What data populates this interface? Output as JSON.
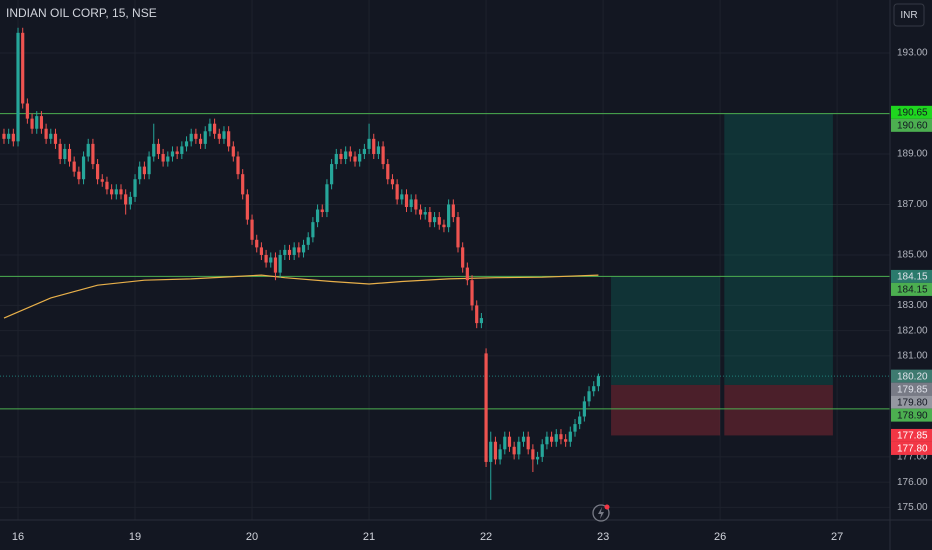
{
  "chart_data": {
    "type": "candlestick",
    "title": "INDIAN OIL CORP, 15, NSE",
    "currency": "INR",
    "up_color": "#26a69a",
    "down_color": "#ef5350",
    "xlim": [
      -0.85,
      189.3
    ],
    "ylim": [
      174.5,
      195.1
    ],
    "grid": true,
    "xticks": [
      {
        "value": 3,
        "label": "16"
      },
      {
        "value": 28,
        "label": "19"
      },
      {
        "value": 53,
        "label": "20"
      },
      {
        "value": 78,
        "label": "21"
      },
      {
        "value": 103,
        "label": "22"
      },
      {
        "value": 128,
        "label": "23"
      },
      {
        "value": 153,
        "label": "26"
      },
      {
        "value": 178,
        "label": "27"
      }
    ],
    "yticks": [
      {
        "value": 193,
        "label": "193.00"
      },
      {
        "value": 189,
        "label": "189.00"
      },
      {
        "value": 187,
        "label": "187.00"
      },
      {
        "value": 185,
        "label": "185.00"
      },
      {
        "value": 183,
        "label": "183.00"
      },
      {
        "value": 182,
        "label": "182.00"
      },
      {
        "value": 181,
        "label": "181.00"
      },
      {
        "value": 177,
        "label": "177.00"
      },
      {
        "value": 176,
        "label": "176.00"
      },
      {
        "value": 175,
        "label": "175.00"
      }
    ],
    "candles": [
      [
        189.8,
        190.0,
        189.4,
        189.6
      ],
      [
        189.6,
        190.0,
        189.4,
        189.8
      ],
      [
        189.8,
        190.0,
        189.3,
        189.5
      ],
      [
        189.5,
        194.0,
        189.3,
        193.8
      ],
      [
        193.8,
        194.0,
        190.8,
        191.0
      ],
      [
        191.0,
        191.2,
        190.2,
        190.4
      ],
      [
        190.4,
        190.6,
        189.8,
        190.0
      ],
      [
        190.0,
        190.7,
        189.8,
        190.5
      ],
      [
        190.5,
        190.7,
        189.8,
        190.0
      ],
      [
        190.0,
        190.2,
        189.4,
        189.6
      ],
      [
        189.6,
        190.0,
        189.4,
        189.8
      ],
      [
        189.8,
        190.0,
        189.2,
        189.4
      ],
      [
        189.4,
        189.6,
        188.6,
        188.8
      ],
      [
        188.8,
        189.4,
        188.6,
        189.2
      ],
      [
        189.2,
        189.4,
        188.5,
        188.7
      ],
      [
        188.7,
        188.9,
        188.1,
        188.3
      ],
      [
        188.3,
        188.5,
        187.8,
        188.0
      ],
      [
        188.0,
        189.1,
        187.8,
        188.9
      ],
      [
        188.9,
        189.6,
        188.7,
        189.4
      ],
      [
        189.4,
        189.6,
        188.4,
        188.6
      ],
      [
        188.6,
        188.8,
        187.8,
        188.0
      ],
      [
        188.0,
        188.2,
        187.7,
        187.9
      ],
      [
        187.9,
        188.1,
        187.4,
        187.6
      ],
      [
        187.6,
        187.8,
        187.2,
        187.4
      ],
      [
        187.4,
        187.8,
        187.2,
        187.6
      ],
      [
        187.6,
        187.8,
        187.2,
        187.4
      ],
      [
        187.4,
        187.6,
        186.6,
        187.0
      ],
      [
        187.0,
        187.5,
        186.8,
        187.3
      ],
      [
        187.3,
        188.2,
        187.1,
        188.0
      ],
      [
        188.0,
        188.7,
        187.8,
        188.5
      ],
      [
        188.5,
        188.7,
        188.0,
        188.2
      ],
      [
        188.2,
        189.1,
        188.0,
        188.9
      ],
      [
        188.9,
        190.2,
        188.7,
        189.4
      ],
      [
        189.4,
        189.6,
        188.8,
        189.0
      ],
      [
        189.0,
        189.2,
        188.5,
        188.7
      ],
      [
        188.7,
        189.1,
        188.5,
        188.9
      ],
      [
        188.9,
        189.3,
        188.7,
        189.1
      ],
      [
        189.1,
        189.3,
        188.8,
        189.0
      ],
      [
        189.0,
        189.5,
        188.8,
        189.3
      ],
      [
        189.3,
        189.7,
        189.1,
        189.5
      ],
      [
        189.5,
        190.0,
        189.3,
        189.8
      ],
      [
        189.8,
        190.0,
        189.4,
        189.6
      ],
      [
        189.6,
        189.8,
        189.2,
        189.4
      ],
      [
        189.4,
        190.1,
        189.2,
        189.9
      ],
      [
        189.9,
        190.4,
        189.7,
        190.2
      ],
      [
        190.2,
        190.4,
        189.6,
        189.8
      ],
      [
        189.8,
        190.0,
        189.4,
        189.6
      ],
      [
        189.6,
        190.1,
        189.4,
        189.9
      ],
      [
        189.9,
        190.1,
        189.1,
        189.3
      ],
      [
        189.3,
        189.5,
        188.7,
        188.9
      ],
      [
        188.9,
        189.1,
        188.0,
        188.2
      ],
      [
        188.2,
        188.4,
        187.2,
        187.4
      ],
      [
        187.4,
        187.6,
        186.2,
        186.4
      ],
      [
        186.4,
        186.6,
        185.4,
        185.6
      ],
      [
        185.6,
        185.8,
        185.1,
        185.3
      ],
      [
        185.3,
        185.5,
        184.8,
        185.0
      ],
      [
        185.0,
        185.2,
        184.5,
        184.7
      ],
      [
        184.7,
        185.1,
        184.5,
        184.9
      ],
      [
        184.9,
        185.1,
        184.0,
        184.3
      ],
      [
        184.3,
        185.2,
        184.1,
        185.0
      ],
      [
        185.0,
        185.4,
        184.8,
        185.2
      ],
      [
        185.2,
        185.4,
        184.8,
        185.0
      ],
      [
        185.0,
        185.5,
        184.8,
        185.3
      ],
      [
        185.3,
        185.5,
        184.9,
        185.1
      ],
      [
        185.1,
        185.6,
        184.9,
        185.4
      ],
      [
        185.4,
        185.9,
        185.2,
        185.7
      ],
      [
        185.7,
        186.5,
        185.5,
        186.3
      ],
      [
        186.3,
        187.0,
        186.1,
        186.8
      ],
      [
        186.8,
        187.0,
        186.5,
        186.7
      ],
      [
        186.7,
        188.0,
        186.5,
        187.8
      ],
      [
        187.8,
        188.8,
        187.6,
        188.6
      ],
      [
        188.6,
        189.2,
        188.4,
        189.0
      ],
      [
        189.0,
        189.2,
        188.6,
        188.8
      ],
      [
        188.8,
        189.3,
        188.6,
        189.1
      ],
      [
        189.1,
        189.3,
        188.7,
        188.9
      ],
      [
        188.9,
        189.1,
        188.5,
        188.7
      ],
      [
        188.7,
        189.2,
        188.5,
        189.0
      ],
      [
        189.0,
        189.4,
        188.8,
        189.2
      ],
      [
        189.2,
        190.2,
        189.0,
        189.6
      ],
      [
        189.6,
        189.8,
        188.8,
        189.0
      ],
      [
        189.0,
        189.5,
        188.8,
        189.3
      ],
      [
        189.3,
        189.5,
        188.4,
        188.6
      ],
      [
        188.6,
        188.8,
        187.8,
        188.0
      ],
      [
        188.0,
        188.2,
        187.6,
        187.8
      ],
      [
        187.8,
        188.0,
        187.0,
        187.2
      ],
      [
        187.2,
        187.6,
        187.0,
        187.4
      ],
      [
        187.4,
        187.6,
        186.7,
        186.9
      ],
      [
        186.9,
        187.4,
        186.7,
        187.2
      ],
      [
        187.2,
        187.4,
        186.6,
        186.8
      ],
      [
        186.8,
        187.0,
        186.4,
        186.6
      ],
      [
        186.6,
        186.9,
        186.4,
        186.7
      ],
      [
        186.7,
        186.9,
        186.1,
        186.3
      ],
      [
        186.3,
        186.7,
        186.1,
        186.5
      ],
      [
        186.5,
        186.7,
        186.0,
        186.2
      ],
      [
        186.2,
        186.4,
        185.9,
        186.1
      ],
      [
        186.1,
        187.2,
        185.9,
        187.0
      ],
      [
        187.0,
        187.2,
        186.3,
        186.5
      ],
      [
        186.5,
        186.7,
        185.1,
        185.3
      ],
      [
        185.3,
        185.5,
        184.3,
        184.5
      ],
      [
        184.5,
        184.7,
        183.8,
        184.0
      ],
      [
        184.0,
        184.2,
        182.8,
        183.0
      ],
      [
        183.0,
        183.2,
        182.1,
        182.3
      ],
      [
        182.3,
        182.7,
        182.1,
        182.5
      ],
      [
        181.1,
        181.3,
        176.6,
        176.8
      ],
      [
        176.8,
        178.0,
        175.3,
        177.6
      ],
      [
        177.6,
        177.8,
        176.7,
        176.9
      ],
      [
        176.9,
        177.5,
        176.7,
        177.3
      ],
      [
        177.3,
        178.0,
        177.1,
        177.8
      ],
      [
        177.8,
        178.0,
        177.2,
        177.4
      ],
      [
        177.4,
        177.6,
        176.9,
        177.1
      ],
      [
        177.1,
        177.8,
        176.9,
        177.6
      ],
      [
        177.6,
        178.0,
        177.4,
        177.8
      ],
      [
        177.8,
        178.0,
        177.1,
        177.3
      ],
      [
        177.3,
        177.5,
        176.4,
        176.9
      ],
      [
        176.9,
        177.2,
        176.7,
        177.0
      ],
      [
        177.0,
        177.7,
        176.8,
        177.5
      ],
      [
        177.5,
        178.0,
        177.3,
        177.8
      ],
      [
        177.8,
        178.0,
        177.4,
        177.6
      ],
      [
        177.6,
        178.1,
        177.4,
        177.9
      ],
      [
        177.9,
        178.1,
        177.5,
        177.7
      ],
      [
        177.7,
        177.9,
        177.4,
        177.6
      ],
      [
        177.6,
        178.2,
        177.4,
        178.0
      ],
      [
        178.0,
        178.5,
        177.8,
        178.3
      ],
      [
        178.3,
        178.8,
        178.1,
        178.6
      ],
      [
        178.6,
        179.4,
        178.4,
        179.2
      ],
      [
        179.2,
        179.8,
        179.0,
        179.6
      ],
      [
        179.6,
        180.0,
        179.4,
        179.8
      ],
      [
        179.8,
        180.3,
        179.6,
        180.2
      ]
    ],
    "ma": {
      "color": "#e8b04a",
      "x": [
        0,
        10,
        20,
        30,
        40,
        50,
        55,
        60,
        70,
        78,
        85,
        95,
        105,
        115,
        127
      ],
      "values": [
        182.5,
        183.3,
        183.8,
        184.0,
        184.05,
        184.15,
        184.2,
        184.1,
        183.95,
        183.85,
        183.95,
        184.05,
        184.1,
        184.12,
        184.2
      ]
    },
    "hlines": [
      {
        "value": 190.6,
        "color": "#4caf50"
      },
      {
        "value": 184.15,
        "color": "#4caf50"
      },
      {
        "value": 178.9,
        "color": "#4caf50"
      }
    ],
    "positions": [
      {
        "x0": 129.7,
        "x1": 153,
        "target": 184.15,
        "entry": 179.85,
        "stop": 177.85
      },
      {
        "x0": 153.9,
        "x1": 177.1,
        "target": 190.6,
        "entry": 179.85,
        "stop": 177.85
      }
    ],
    "price_labels": [
      {
        "value": 190.65,
        "label": "190.65",
        "color": "#1fd61f",
        "text_color": "#131722"
      },
      {
        "value": 190.6,
        "label": "190.60",
        "color": "#4caf50",
        "text_color": "#131722"
      },
      {
        "value": 184.15,
        "label": "184.15",
        "color": "#2b7a6c",
        "text_color": "#e0e3eb"
      },
      {
        "value": 184.15,
        "label": "184.15",
        "color": "#4caf50",
        "text_color": "#131722"
      },
      {
        "value": 180.2,
        "label": "180.20",
        "color": "#3e7a70",
        "text_color": "#e0e3eb"
      },
      {
        "value": 179.85,
        "label": "179.85",
        "color": "#787b86",
        "text_color": "#e0e3eb"
      },
      {
        "value": 179.8,
        "label": "179.80",
        "color": "#9598a1",
        "text_color": "#131722"
      },
      {
        "value": 178.9,
        "label": "178.90",
        "color": "#4caf50",
        "text_color": "#131722"
      },
      {
        "value": 177.85,
        "label": "177.85",
        "color": "#f23645",
        "text_color": "#ffffff"
      },
      {
        "value": 177.8,
        "label": "177.80",
        "color": "#f23645",
        "text_color": "#ffffff"
      }
    ]
  }
}
